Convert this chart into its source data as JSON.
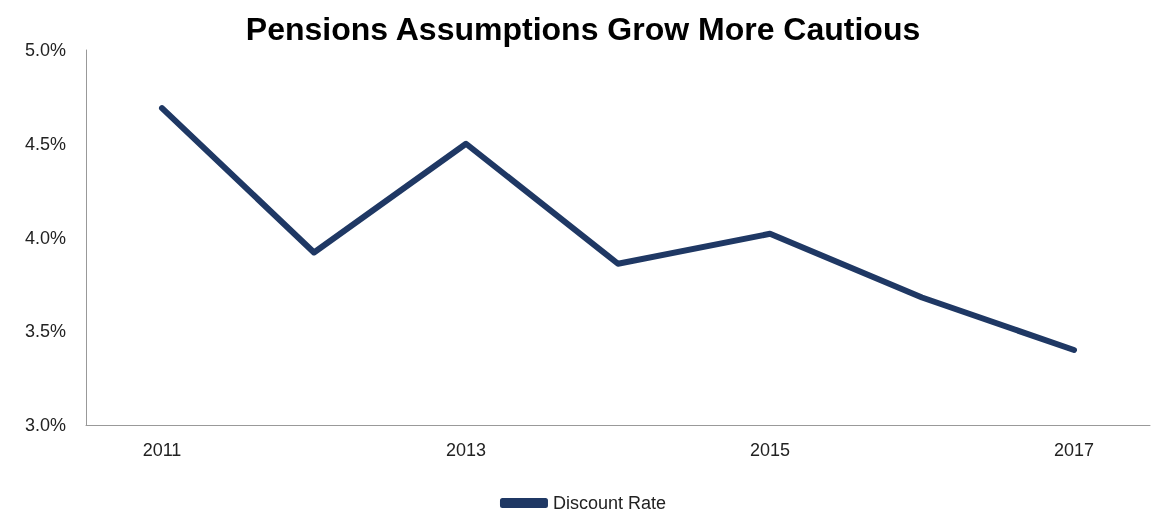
{
  "chart_data": {
    "type": "line",
    "title": "Pensions Assumptions Grow More Cautious",
    "categories": [
      "2011",
      null,
      "2013",
      null,
      "2015",
      null,
      "2017"
    ],
    "series": [
      {
        "name": "Discount Rate",
        "color": "#1f3864",
        "values": [
          4.69,
          3.92,
          4.5,
          3.86,
          4.02,
          3.68,
          3.4
        ]
      }
    ],
    "ylim": [
      3.0,
      5.0
    ],
    "yticks": [
      {
        "value": 3.0,
        "label": "3.0%"
      },
      {
        "value": 3.5,
        "label": "3.5%"
      },
      {
        "value": 4.0,
        "label": "4.0%"
      },
      {
        "value": 4.5,
        "label": "4.5%"
      },
      {
        "value": 5.0,
        "label": "5.0%"
      }
    ],
    "grid": false,
    "legend": "bottom",
    "marker": "none",
    "line_style": "solid"
  }
}
